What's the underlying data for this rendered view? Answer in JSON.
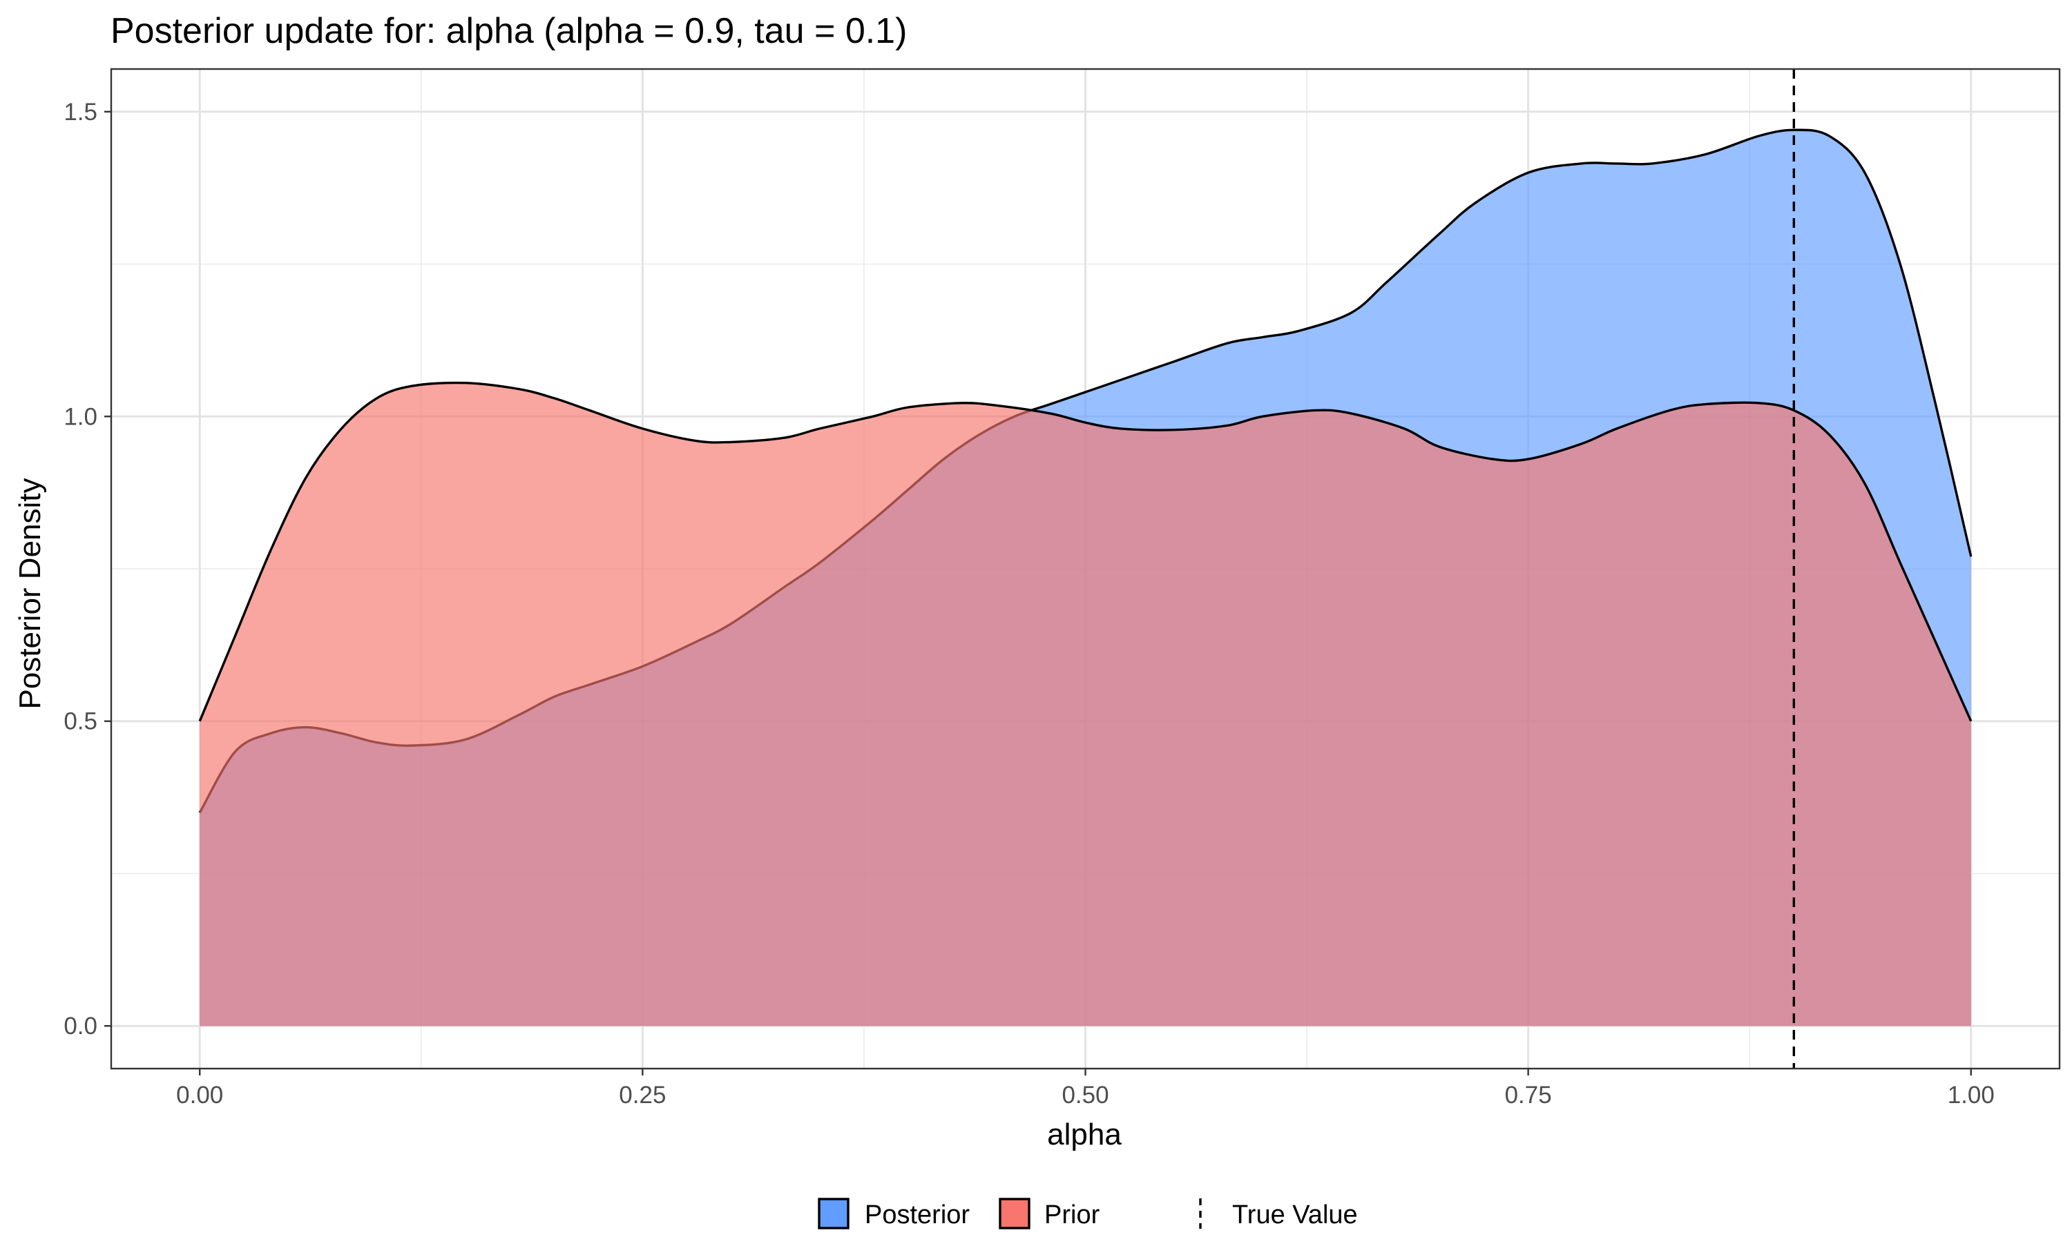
{
  "chart_data": {
    "type": "area",
    "title": "Posterior update for: alpha (alpha = 0.9, tau = 0.1)",
    "xlabel": "alpha",
    "ylabel": "Posterior Density",
    "xlim": [
      -0.05,
      1.05
    ],
    "ylim": [
      -0.07,
      1.57
    ],
    "x_ticks": [
      0.0,
      0.25,
      0.5,
      0.75,
      1.0
    ],
    "x_tick_labels": [
      "0.00",
      "0.25",
      "0.50",
      "0.75",
      "1.00"
    ],
    "y_ticks": [
      0.0,
      0.5,
      1.0,
      1.5
    ],
    "y_tick_labels": [
      "0.0",
      "0.5",
      "1.0",
      "1.5"
    ],
    "grid": true,
    "legend_position": "bottom",
    "legend": [
      {
        "label": "Posterior",
        "kind": "fill",
        "color": "#619CFF"
      },
      {
        "label": "Prior",
        "kind": "fill",
        "color": "#F8766D"
      },
      {
        "label": "True Value",
        "kind": "dashed-line",
        "color": "#000000"
      }
    ],
    "reference_line": {
      "label": "True Value",
      "x": 0.9
    },
    "series": [
      {
        "name": "Posterior",
        "color": "#619CFF",
        "x": [
          0.0,
          0.02,
          0.04,
          0.06,
          0.08,
          0.1,
          0.12,
          0.15,
          0.18,
          0.2,
          0.22,
          0.25,
          0.28,
          0.3,
          0.33,
          0.35,
          0.38,
          0.4,
          0.42,
          0.44,
          0.46,
          0.48,
          0.5,
          0.52,
          0.55,
          0.58,
          0.6,
          0.62,
          0.65,
          0.67,
          0.7,
          0.72,
          0.75,
          0.78,
          0.8,
          0.82,
          0.85,
          0.88,
          0.9,
          0.92,
          0.94,
          0.96,
          0.98,
          1.0
        ],
        "y": [
          0.35,
          0.45,
          0.48,
          0.49,
          0.48,
          0.465,
          0.46,
          0.47,
          0.51,
          0.54,
          0.56,
          0.59,
          0.63,
          0.66,
          0.72,
          0.76,
          0.83,
          0.88,
          0.93,
          0.97,
          1.0,
          1.02,
          1.04,
          1.06,
          1.09,
          1.12,
          1.13,
          1.14,
          1.17,
          1.22,
          1.3,
          1.35,
          1.4,
          1.415,
          1.415,
          1.415,
          1.43,
          1.46,
          1.47,
          1.46,
          1.4,
          1.25,
          1.02,
          0.77
        ]
      },
      {
        "name": "Prior",
        "color": "#F8766D",
        "x": [
          0.0,
          0.02,
          0.04,
          0.06,
          0.08,
          0.1,
          0.12,
          0.15,
          0.18,
          0.2,
          0.22,
          0.25,
          0.28,
          0.3,
          0.33,
          0.35,
          0.38,
          0.4,
          0.43,
          0.45,
          0.48,
          0.5,
          0.52,
          0.55,
          0.58,
          0.6,
          0.63,
          0.65,
          0.68,
          0.7,
          0.73,
          0.75,
          0.78,
          0.8,
          0.83,
          0.85,
          0.88,
          0.9,
          0.92,
          0.94,
          0.96,
          0.98,
          1.0
        ],
        "y": [
          0.5,
          0.64,
          0.78,
          0.9,
          0.98,
          1.03,
          1.05,
          1.055,
          1.045,
          1.03,
          1.01,
          0.98,
          0.96,
          0.958,
          0.965,
          0.98,
          1.0,
          1.015,
          1.022,
          1.018,
          1.005,
          0.99,
          0.98,
          0.978,
          0.985,
          1.0,
          1.01,
          1.005,
          0.98,
          0.95,
          0.93,
          0.93,
          0.955,
          0.98,
          1.01,
          1.02,
          1.022,
          1.01,
          0.97,
          0.89,
          0.76,
          0.63,
          0.5
        ]
      }
    ]
  }
}
